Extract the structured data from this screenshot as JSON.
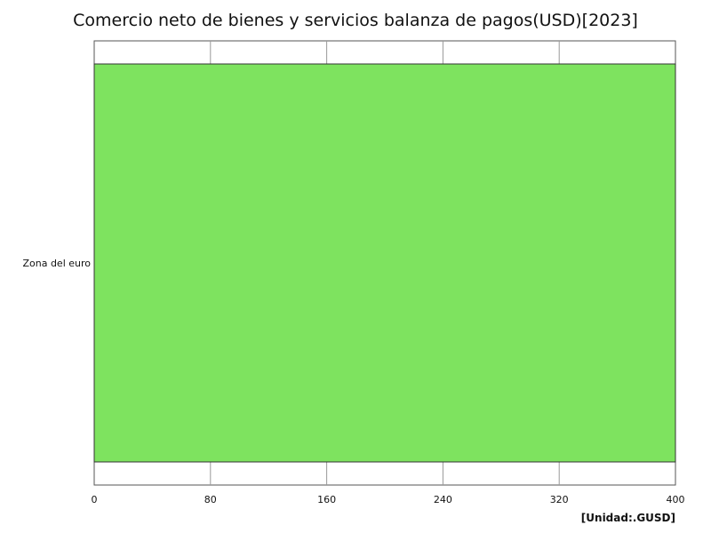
{
  "chart_data": {
    "type": "bar",
    "orientation": "horizontal",
    "title": "Comercio neto de bienes y servicios balanza de pagos(USD)[2023]",
    "unit": "[Unidad:.GUSD]",
    "categories": [
      "Zona del euro"
    ],
    "values": [
      400
    ],
    "xlim": [
      0,
      400
    ],
    "xticks": [
      0,
      80,
      160,
      240,
      320,
      400
    ],
    "xlabel": "",
    "ylabel": "",
    "grid": true,
    "legend": "none",
    "bar_color": "#7ee35f"
  }
}
